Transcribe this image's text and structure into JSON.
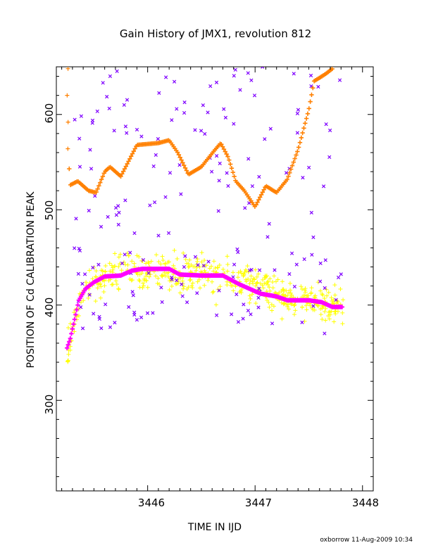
{
  "chart_data": {
    "type": "scatter",
    "title": "Gain History of JMX1, revolution 812",
    "xlabel": "TIME IN IJD",
    "ylabel": "POSITION OF Cd CALIBRATION PEAK",
    "xlim": [
      3445.15,
      3448.1
    ],
    "ylim": [
      205,
      650
    ],
    "x_ticks": [
      "3446",
      "3447",
      "3448"
    ],
    "y_ticks": [
      "300",
      "400",
      "500",
      "600"
    ],
    "grid": false,
    "legend": "none",
    "series": [
      {
        "color": "#ffff00",
        "marker": "plus",
        "scatter": {
          "x_start": 3445.25,
          "x_end": 3447.82,
          "count": 520,
          "spread": 14
        },
        "values": [
          [
            3445.25,
            355
          ],
          [
            3445.3,
            372
          ],
          [
            3445.35,
            395
          ],
          [
            3445.4,
            412
          ],
          [
            3445.5,
            425
          ],
          [
            3445.65,
            432
          ],
          [
            3445.85,
            437
          ],
          [
            3446.1,
            438
          ],
          [
            3446.3,
            433
          ],
          [
            3446.5,
            432
          ],
          [
            3446.7,
            430
          ],
          [
            3446.9,
            422
          ],
          [
            3447.1,
            415
          ],
          [
            3447.3,
            408
          ],
          [
            3447.5,
            404
          ],
          [
            3447.7,
            400
          ],
          [
            3447.82,
            398
          ]
        ]
      },
      {
        "color": "#7f00ff",
        "marker": "cross",
        "scatter": {
          "x_start": 3445.3,
          "x_end": 3447.82,
          "count": 190
        },
        "values": [
          [
            3445.3,
            525
          ],
          [
            3445.5,
            545
          ],
          [
            3445.7,
            520
          ],
          [
            3445.9,
            430
          ],
          [
            3446.1,
            420
          ],
          [
            3446.3,
            560
          ],
          [
            3446.5,
            600
          ],
          [
            3446.7,
            410
          ],
          [
            3446.9,
            540
          ],
          [
            3447.1,
            380
          ],
          [
            3447.3,
            450
          ],
          [
            3447.5,
            560
          ],
          [
            3447.7,
            520
          ]
        ]
      },
      {
        "color": "#ff8000",
        "marker": "plus",
        "values": [
          [
            3445.25,
            648
          ],
          [
            3445.26,
            560
          ],
          [
            3445.28,
            526
          ],
          [
            3445.35,
            530
          ],
          [
            3445.45,
            520
          ],
          [
            3445.52,
            518
          ],
          [
            3445.6,
            540
          ],
          [
            3445.65,
            545
          ],
          [
            3445.75,
            535
          ],
          [
            3445.9,
            568
          ],
          [
            3446.1,
            570
          ],
          [
            3446.2,
            573
          ],
          [
            3446.28,
            560
          ],
          [
            3446.38,
            537
          ],
          [
            3446.5,
            545
          ],
          [
            3446.62,
            562
          ],
          [
            3446.68,
            570
          ],
          [
            3446.75,
            555
          ],
          [
            3446.82,
            530
          ],
          [
            3446.9,
            520
          ],
          [
            3447.0,
            503
          ],
          [
            3447.1,
            525
          ],
          [
            3447.2,
            518
          ],
          [
            3447.3,
            532
          ],
          [
            3447.4,
            563
          ],
          [
            3447.5,
            605
          ],
          [
            3447.55,
            635
          ],
          [
            3447.65,
            642
          ],
          [
            3447.72,
            648
          ]
        ]
      },
      {
        "color": "#ff00ff",
        "marker": "thick-line",
        "values": [
          [
            3445.25,
            355
          ],
          [
            3445.28,
            365
          ],
          [
            3445.32,
            385
          ],
          [
            3445.36,
            405
          ],
          [
            3445.42,
            417
          ],
          [
            3445.5,
            424
          ],
          [
            3445.6,
            430
          ],
          [
            3445.75,
            431
          ],
          [
            3445.85,
            436
          ],
          [
            3445.95,
            438
          ],
          [
            3446.2,
            438
          ],
          [
            3446.3,
            432
          ],
          [
            3446.5,
            431
          ],
          [
            3446.7,
            431
          ],
          [
            3446.85,
            422
          ],
          [
            3446.95,
            417
          ],
          [
            3447.05,
            412
          ],
          [
            3447.2,
            409
          ],
          [
            3447.3,
            405
          ],
          [
            3447.5,
            405
          ],
          [
            3447.62,
            403
          ],
          [
            3447.72,
            398
          ],
          [
            3447.82,
            398
          ]
        ]
      }
    ]
  },
  "footer": "oxborrow 11-Aug-2009 10:34"
}
